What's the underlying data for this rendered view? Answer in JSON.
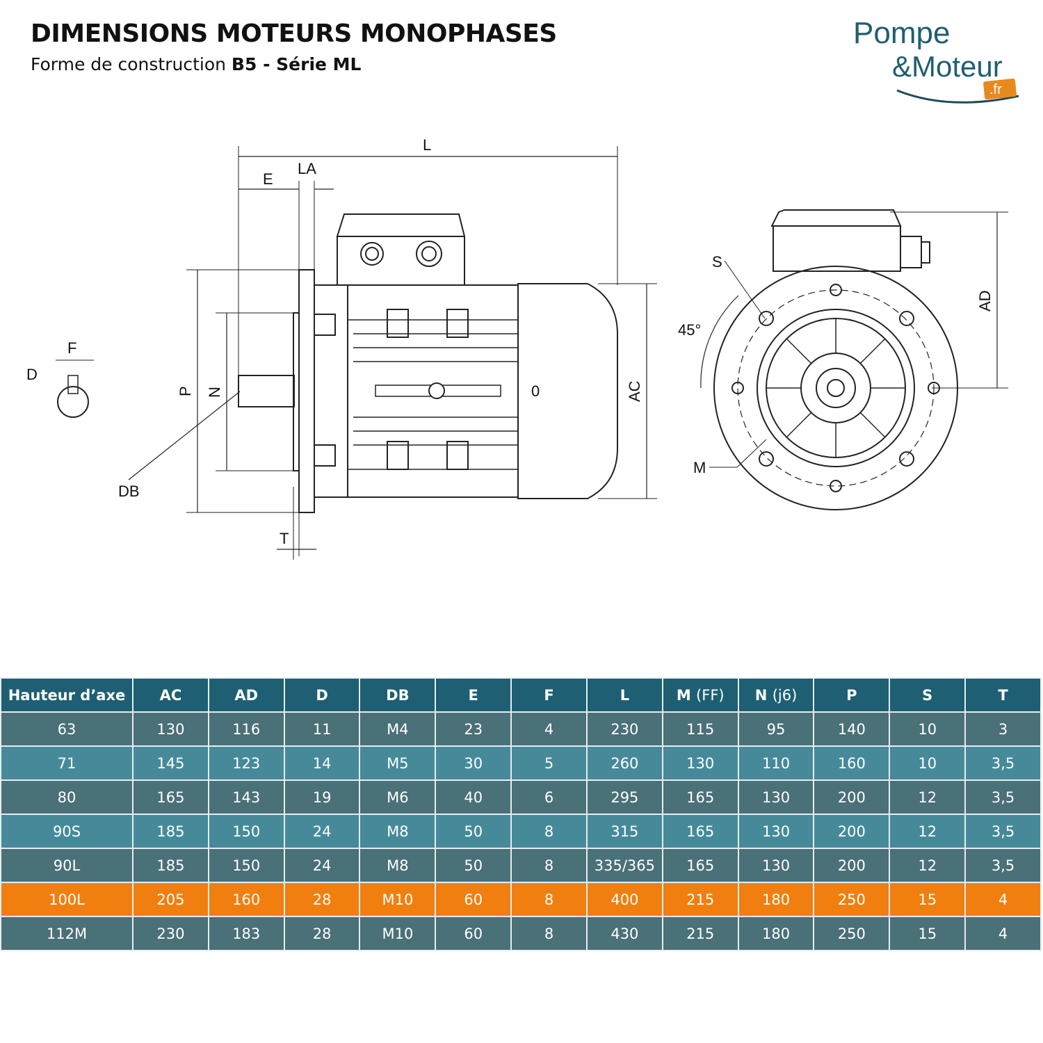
{
  "header": {
    "title": "DIMENSIONS MOTEURS MONOPHASES",
    "subtitle_prefix": "Forme de construction ",
    "subtitle_bold": "B5 - Série ML"
  },
  "logo": {
    "line1": "Pompe",
    "line2": "&Moteur",
    "badge": ".fr",
    "colors": {
      "text": "#1f5f70",
      "badge": "#e8891e"
    }
  },
  "drawing": {
    "labels": {
      "L": "L",
      "LA": "LA",
      "E": "E",
      "F": "F",
      "D": "D",
      "P": "P",
      "N": "N",
      "DB": "DB",
      "T": "T",
      "O": "0",
      "AC": "AC",
      "AD": "AD",
      "S": "S",
      "M": "M",
      "angle": "45°"
    }
  },
  "table": {
    "headers": [
      {
        "main": "Hauteur d’axe"
      },
      {
        "main": "AC"
      },
      {
        "main": "AD"
      },
      {
        "main": "D"
      },
      {
        "main": "DB"
      },
      {
        "main": "E"
      },
      {
        "main": "F"
      },
      {
        "main": "L"
      },
      {
        "main": "M",
        "note": "(FF)"
      },
      {
        "main": "N",
        "note": "(j6)"
      },
      {
        "main": "P"
      },
      {
        "main": "S"
      },
      {
        "main": "T"
      }
    ],
    "rows": [
      [
        "63",
        "130",
        "116",
        "11",
        "M4",
        "23",
        "4",
        "230",
        "115",
        "95",
        "140",
        "10",
        "3"
      ],
      [
        "71",
        "145",
        "123",
        "14",
        "M5",
        "30",
        "5",
        "260",
        "130",
        "110",
        "160",
        "10",
        "3,5"
      ],
      [
        "80",
        "165",
        "143",
        "19",
        "M6",
        "40",
        "6",
        "295",
        "165",
        "130",
        "200",
        "12",
        "3,5"
      ],
      [
        "90S",
        "185",
        "150",
        "24",
        "M8",
        "50",
        "8",
        "315",
        "165",
        "130",
        "200",
        "12",
        "3,5"
      ],
      [
        "90L",
        "185",
        "150",
        "24",
        "M8",
        "50",
        "8",
        "335/365",
        "165",
        "130",
        "200",
        "12",
        "3,5"
      ],
      [
        "100L",
        "205",
        "160",
        "28",
        "M10",
        "60",
        "8",
        "400",
        "215",
        "180",
        "250",
        "15",
        "4"
      ],
      [
        "112M",
        "230",
        "183",
        "28",
        "M10",
        "60",
        "8",
        "430",
        "215",
        "180",
        "250",
        "15",
        "4"
      ]
    ],
    "highlighted_row": 5,
    "colors": {
      "header": "#1e5f73",
      "row_dark": "#4a7078",
      "row_light": "#468a9a",
      "highlight": "#f07f10"
    }
  }
}
